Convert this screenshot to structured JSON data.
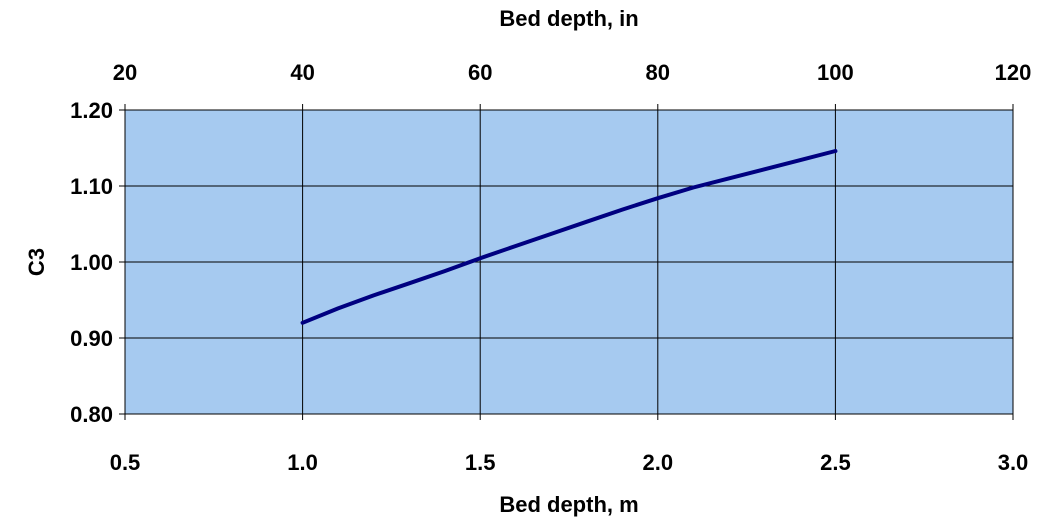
{
  "chart_data": {
    "type": "line",
    "xlabel": "Bed depth, m",
    "x2label": "Bed depth, in",
    "ylabel": "C3",
    "xlim": [
      0.5,
      3.0
    ],
    "x_ticks": [
      0.5,
      1.0,
      1.5,
      2.0,
      2.5,
      3.0
    ],
    "x_tick_labels": [
      "0.5",
      "1.0",
      "1.5",
      "2.0",
      "2.5",
      "3.0"
    ],
    "x2lim": [
      20,
      120
    ],
    "x2_ticks": [
      20,
      40,
      60,
      80,
      100,
      120
    ],
    "x2_tick_labels": [
      "20",
      "40",
      "60",
      "80",
      "100",
      "120"
    ],
    "ylim": [
      0.8,
      1.2
    ],
    "y_ticks": [
      0.8,
      0.9,
      1.0,
      1.1,
      1.2
    ],
    "y_tick_labels": [
      "0.80",
      "0.90",
      "1.00",
      "1.10",
      "1.20"
    ],
    "grid": true,
    "plot_background": "#A6CAF0",
    "series": [
      {
        "color": "#000080",
        "x": [
          1.0,
          1.1,
          1.2,
          1.3,
          1.4,
          1.5,
          1.6,
          1.7,
          1.8,
          1.9,
          2.0,
          2.1,
          2.2,
          2.3,
          2.4,
          2.5
        ],
        "y": [
          0.92,
          0.939,
          0.956,
          0.972,
          0.988,
          1.005,
          1.021,
          1.037,
          1.053,
          1.069,
          1.084,
          1.098,
          1.11,
          1.122,
          1.134,
          1.146
        ]
      }
    ]
  }
}
